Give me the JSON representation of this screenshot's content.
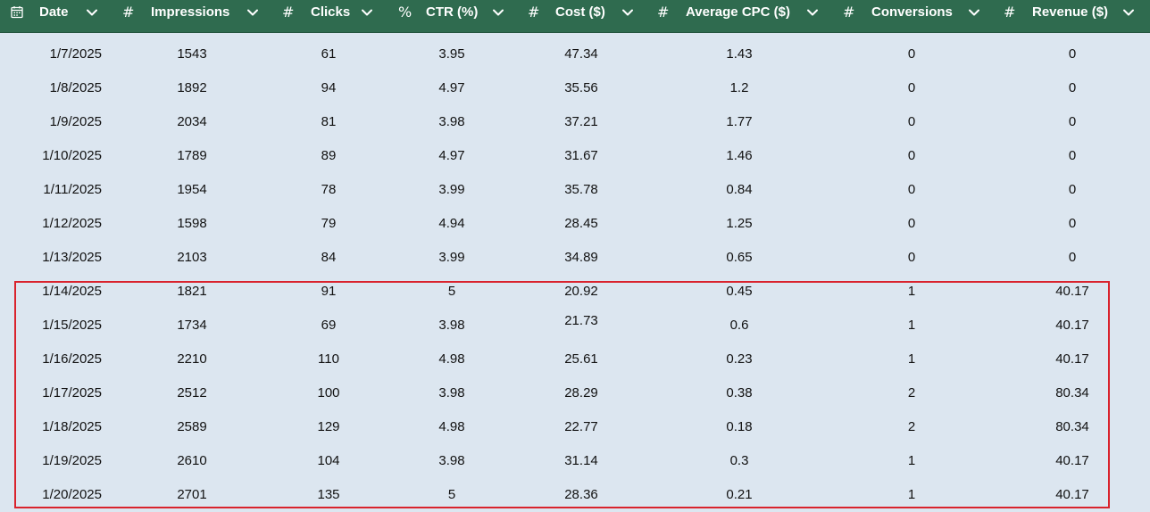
{
  "table": {
    "columns": [
      {
        "type_icon": "calendar-icon",
        "type_glyph": "",
        "label": "Date"
      },
      {
        "type_icon": "number-type-icon",
        "type_glyph": "#",
        "label": "Impressions"
      },
      {
        "type_icon": "number-type-icon",
        "type_glyph": "#",
        "label": "Clicks"
      },
      {
        "type_icon": "percent-type-icon",
        "type_glyph": "%",
        "label": "CTR (%)"
      },
      {
        "type_icon": "number-type-icon",
        "type_glyph": "#",
        "label": "Cost ($)"
      },
      {
        "type_icon": "number-type-icon",
        "type_glyph": "#",
        "label": "Average CPC ($)"
      },
      {
        "type_icon": "number-type-icon",
        "type_glyph": "#",
        "label": "Conversions"
      },
      {
        "type_icon": "number-type-icon",
        "type_glyph": "#",
        "label": "Revenue ($)"
      }
    ],
    "rows": [
      [
        "1/7/2025",
        "1543",
        "61",
        "3.95",
        "47.34",
        "1.43",
        "0",
        "0"
      ],
      [
        "1/8/2025",
        "1892",
        "94",
        "4.97",
        "35.56",
        "1.2",
        "0",
        "0"
      ],
      [
        "1/9/2025",
        "2034",
        "81",
        "3.98",
        "37.21",
        "1.77",
        "0",
        "0"
      ],
      [
        "1/10/2025",
        "1789",
        "89",
        "4.97",
        "31.67",
        "1.46",
        "0",
        "0"
      ],
      [
        "1/11/2025",
        "1954",
        "78",
        "3.99",
        "35.78",
        "0.84",
        "0",
        "0"
      ],
      [
        "1/12/2025",
        "1598",
        "79",
        "4.94",
        "28.45",
        "1.25",
        "0",
        "0"
      ],
      [
        "1/13/2025",
        "2103",
        "84",
        "3.99",
        "34.89",
        "0.65",
        "0",
        "0"
      ],
      [
        "1/14/2025",
        "1821",
        "91",
        "5",
        "20.92",
        "0.45",
        "1",
        "40.17"
      ],
      [
        "1/15/2025",
        "1734",
        "69",
        "3.98",
        "21.73",
        "0.6",
        "1",
        "40.17"
      ],
      [
        "1/16/2025",
        "2210",
        "110",
        "4.98",
        "25.61",
        "0.23",
        "1",
        "40.17"
      ],
      [
        "1/17/2025",
        "2512",
        "100",
        "3.98",
        "28.29",
        "0.38",
        "2",
        "80.34"
      ],
      [
        "1/18/2025",
        "2589",
        "129",
        "4.98",
        "22.77",
        "0.18",
        "2",
        "80.34"
      ],
      [
        "1/19/2025",
        "2610",
        "104",
        "3.98",
        "31.14",
        "0.3",
        "1",
        "40.17"
      ],
      [
        "1/20/2025",
        "2701",
        "135",
        "5",
        "28.36",
        "0.21",
        "1",
        "40.17"
      ]
    ],
    "highlighted_rows": [
      "1/14/2025",
      "1/15/2025",
      "1/16/2025",
      "1/17/2025",
      "1/18/2025",
      "1/19/2025",
      "1/20/2025"
    ]
  },
  "colors": {
    "header_bg": "#2f6b4f",
    "body_bg": "#dce6f0",
    "highlight_border": "#d9232d"
  }
}
